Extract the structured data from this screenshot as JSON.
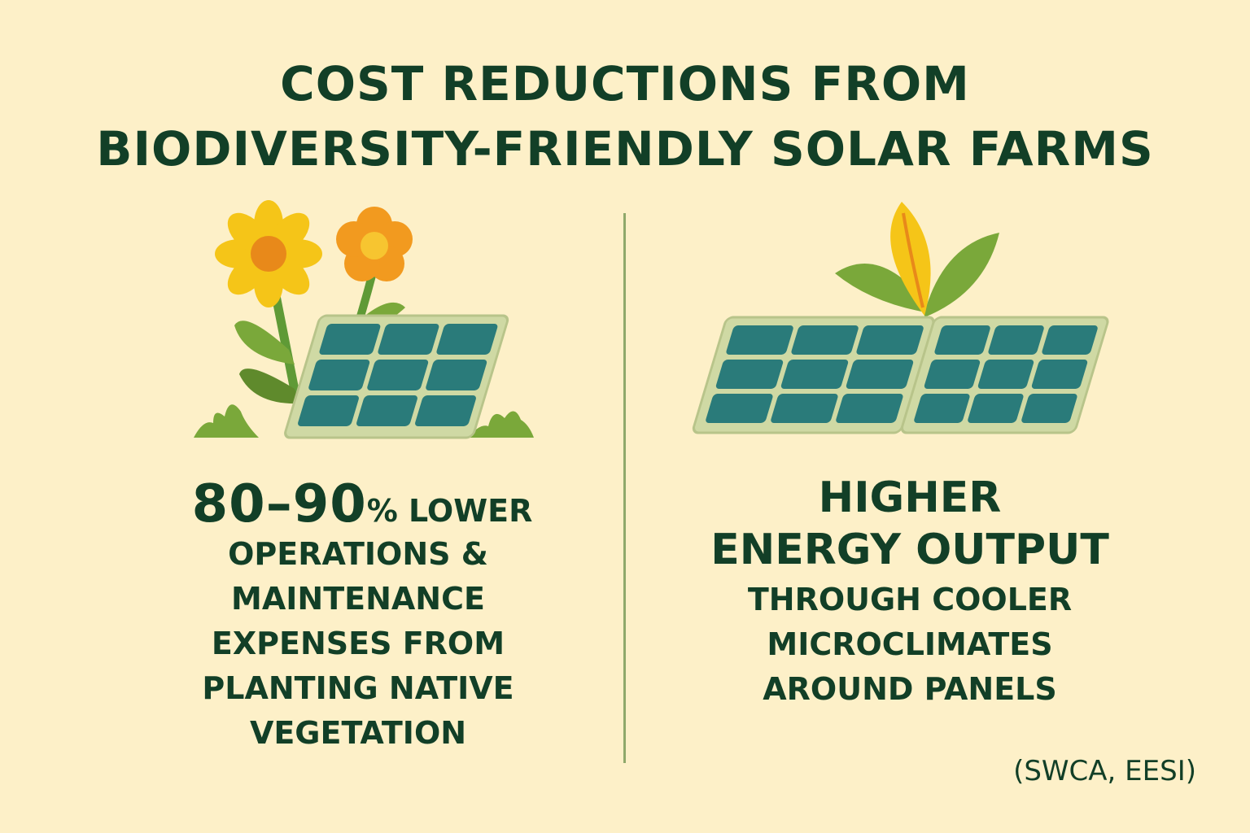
{
  "title": {
    "line1": "COST REDUCTIONS FROM",
    "line2": "BIODIVERSITY-FRIENDLY SOLAR FARMS"
  },
  "left_panel": {
    "illustration_icon": "flowers-solar-panel-icon",
    "stat_number": "80–90",
    "stat_suffix": "% LOWER",
    "description_lines": [
      "OPERATIONS &",
      "MAINTENANCE",
      "EXPENSES FROM",
      "PLANTING NATIVE",
      "VEGETATION"
    ]
  },
  "right_panel": {
    "illustration_icon": "leaves-solar-panels-icon",
    "headline_lines": [
      "HIGHER",
      "ENERGY OUTPUT"
    ],
    "description_lines": [
      "THROUGH COOLER",
      "MICROCLIMATES",
      "AROUND PANELS"
    ]
  },
  "source": "(SWCA, EESI)",
  "colors": {
    "background": "#fdf0c8",
    "text": "#123f27",
    "divider": "#8fa86a",
    "panel_cell": "#2a7b7a",
    "panel_frame": "#cfd9a4",
    "leaf_green": "#7aa83a",
    "flower_yellow": "#f5c518",
    "flower_orange": "#f29a1f"
  }
}
